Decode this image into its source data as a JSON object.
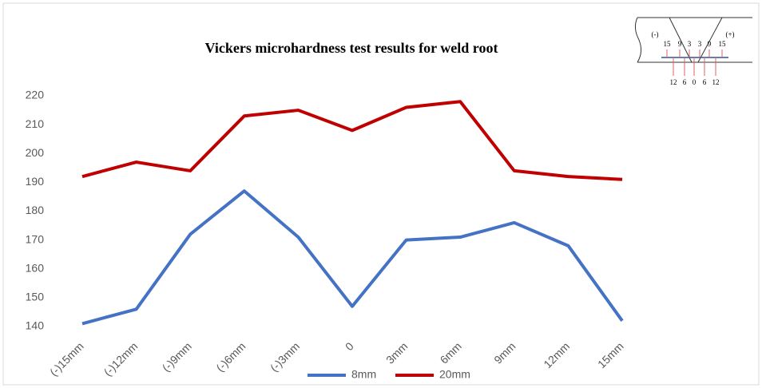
{
  "chart_data": {
    "type": "line",
    "title": "Vickers microhardness test results for weld root",
    "categories": [
      "(-)15mm",
      "(-)12mm",
      "(-)9mm",
      "(-)6mm",
      "(-)3mm",
      "0",
      "3mm",
      "6mm",
      "9mm",
      "12mm",
      "15mm"
    ],
    "series": [
      {
        "name": "8mm",
        "color": "#4472c4",
        "values": [
          141,
          146,
          172,
          187,
          171,
          147,
          170,
          171,
          176,
          168,
          142
        ]
      },
      {
        "name": "20mm",
        "color": "#c00000",
        "values": [
          192,
          197,
          194,
          213,
          215,
          208,
          216,
          218,
          194,
          192,
          191
        ]
      }
    ],
    "ylim": [
      140,
      220
    ],
    "yticks": [
      140,
      150,
      160,
      170,
      180,
      190,
      200,
      210,
      220
    ],
    "grid": false,
    "legend": "bottom"
  },
  "inset": {
    "left_label": "(-)",
    "right_label": "(+)",
    "top_numbers": [
      15,
      9,
      3,
      3,
      9,
      15
    ],
    "bottom_numbers": [
      12,
      6,
      0,
      6,
      12
    ]
  }
}
